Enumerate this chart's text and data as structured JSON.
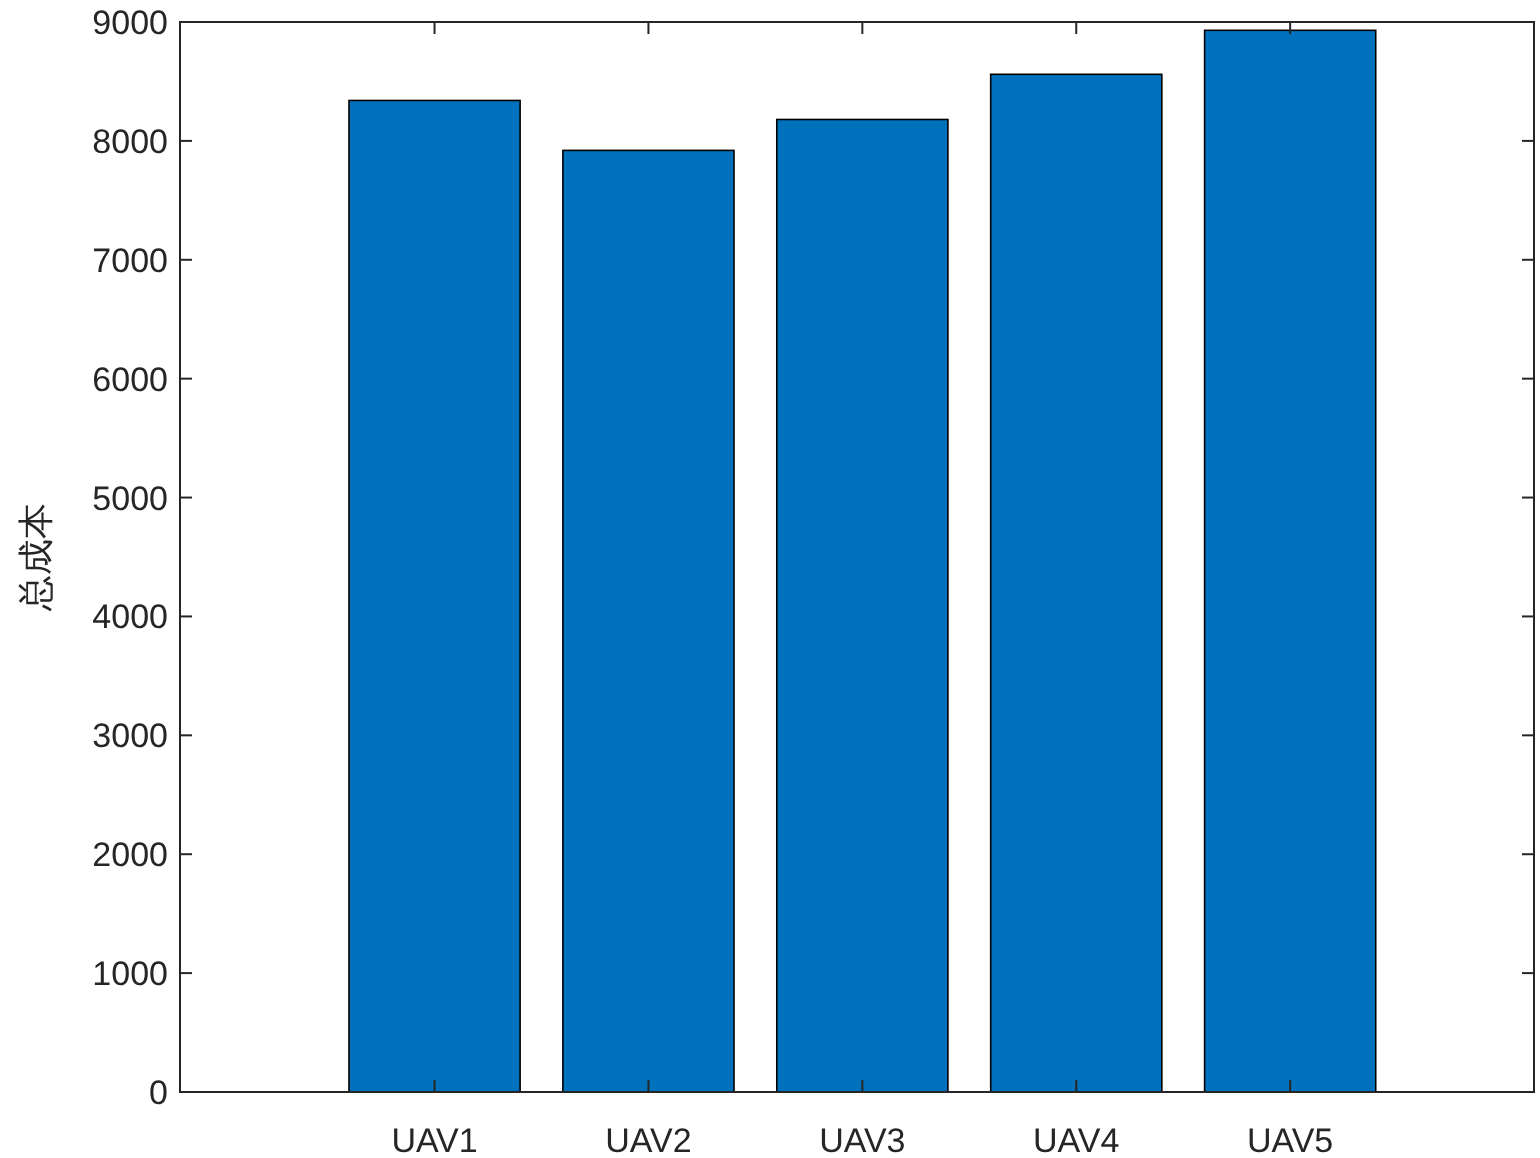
{
  "chart_data": {
    "type": "bar",
    "ylabel": "总成本",
    "categories": [
      "UAV1",
      "UAV2",
      "UAV3",
      "UAV4",
      "UAV5"
    ],
    "values": [
      8340,
      7920,
      8180,
      8560,
      8930
    ],
    "color": "#0072bd",
    "ylim": [
      0,
      9000
    ],
    "yticks": [
      0,
      1000,
      2000,
      3000,
      4000,
      5000,
      6000,
      7000,
      8000,
      9000
    ]
  }
}
